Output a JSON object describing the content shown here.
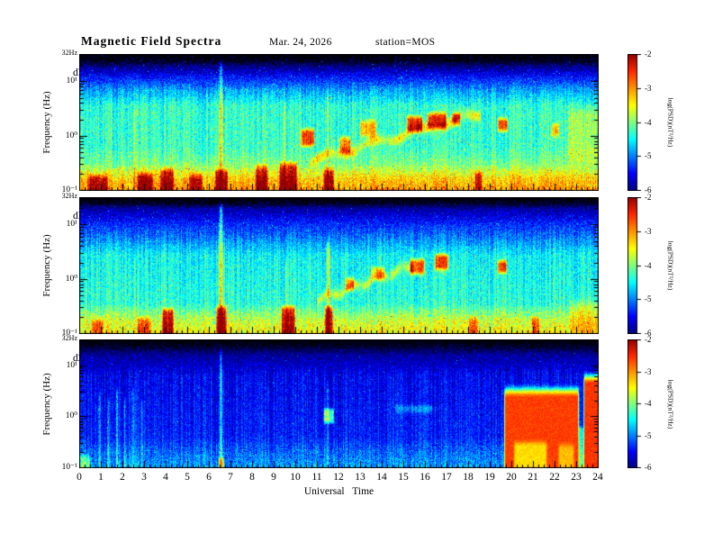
{
  "header": {
    "title": "Magnetic Field Spectra",
    "date": "Mar. 24, 2026",
    "station": "station=MOS"
  },
  "axes": {
    "x_label": "Universal Time",
    "x_ticks": [
      "0",
      "1",
      "2",
      "3",
      "4",
      "5",
      "6",
      "7",
      "8",
      "9",
      "10",
      "11",
      "12",
      "13",
      "14",
      "15",
      "16",
      "17",
      "18",
      "19",
      "20",
      "21",
      "22",
      "23",
      "24"
    ],
    "y_label": "Frequency (Hz)",
    "y_top_label": "32Hz",
    "y_ticks": [
      "10¹",
      "10⁰",
      "10⁻¹"
    ]
  },
  "colorbar": {
    "label": "log(PSD)(nT²/Hz)",
    "ticks": [
      "-2",
      "-3",
      "-4",
      "-5",
      "-6"
    ]
  },
  "chart_data": {
    "type": "heatmap",
    "title": "Magnetic Field Spectra",
    "date": "Mar. 24, 2026",
    "station": "MOS",
    "xlabel": "Universal Time",
    "x_range": [
      0,
      24
    ],
    "ylabel": "Frequency (Hz)",
    "y_scale": "log",
    "y_range_hz": [
      0.1,
      32
    ],
    "colorbar_label": "log(PSD)(nT²/Hz)",
    "c_range": [
      -6,
      -2
    ],
    "panels": [
      {
        "label": "dH/dt",
        "seed": 7,
        "noise": 0.36,
        "speckle_p": 0.015,
        "speckle_amp": 0.85,
        "base": [
          [
            -1.0,
            -3.0
          ],
          [
            -0.78,
            -3.3
          ],
          [
            -0.5,
            -4.05
          ],
          [
            -0.2,
            -4.3
          ],
          [
            0.55,
            -4.35
          ],
          [
            0.85,
            -4.9
          ],
          [
            1.08,
            -5.45
          ],
          [
            1.28,
            -6.0
          ],
          [
            1.38,
            -6.45
          ],
          [
            1.51,
            -6.65
          ]
        ],
        "features": [
          {
            "kind": "vline",
            "t": 6.55,
            "w": 0.07,
            "lf": [
              -1.1,
              1.36
            ],
            "amp": 1.05
          },
          {
            "kind": "vline",
            "t": 2.55,
            "w": 0.05,
            "lf": [
              -1.1,
              0.5
            ],
            "amp": 0.4
          },
          {
            "kind": "vline",
            "t": 9.5,
            "w": 0.05,
            "lf": [
              -1.1,
              0.6
            ],
            "amp": 0.45
          },
          {
            "kind": "vline",
            "t": 11.5,
            "w": 0.05,
            "lf": [
              -1.1,
              0.9
            ],
            "amp": 0.5
          },
          {
            "kind": "trace",
            "p0": [
              11.0,
              -0.42
            ],
            "p1": [
              18.2,
              0.38
            ],
            "w": 0.09,
            "amp": 0.9,
            "wob": 0.06
          },
          {
            "kind": "blob",
            "t": [
              10.25,
              10.85
            ],
            "lf": [
              -0.18,
              0.12
            ],
            "amp": 1.75,
            "soft": 0.1
          },
          {
            "kind": "blob",
            "t": [
              12.05,
              12.55
            ],
            "lf": [
              -0.3,
              -0.02
            ],
            "amp": 1.4,
            "soft": 0.1
          },
          {
            "kind": "blob",
            "t": [
              13.0,
              13.7
            ],
            "lf": [
              0.0,
              0.28
            ],
            "amp": 1.15,
            "soft": 0.12
          },
          {
            "kind": "blob",
            "t": [
              15.15,
              15.85
            ],
            "lf": [
              0.08,
              0.36
            ],
            "amp": 1.8,
            "soft": 0.1
          },
          {
            "kind": "blob",
            "t": [
              16.1,
              16.95
            ],
            "lf": [
              0.15,
              0.42
            ],
            "amp": 1.8,
            "soft": 0.1
          },
          {
            "kind": "blob",
            "t": [
              17.25,
              17.6
            ],
            "lf": [
              0.2,
              0.42
            ],
            "amp": 1.45,
            "soft": 0.1
          },
          {
            "kind": "blob",
            "t": [
              19.35,
              19.8
            ],
            "lf": [
              0.1,
              0.32
            ],
            "amp": 1.8,
            "soft": 0.1
          },
          {
            "kind": "blob",
            "t": [
              21.85,
              22.15
            ],
            "lf": [
              0.0,
              0.22
            ],
            "amp": 1.2,
            "soft": 0.1
          },
          {
            "kind": "blob",
            "t": [
              22.6,
              24.1
            ],
            "lf": [
              -0.5,
              0.5
            ],
            "amp": 0.45,
            "soft": 0.3
          },
          {
            "kind": "blob",
            "t": [
              0.4,
              1.3
            ],
            "lf": [
              -1.15,
              -0.72
            ],
            "amp": 1.15,
            "soft": 0.12
          },
          {
            "kind": "blob",
            "t": [
              2.7,
              3.4
            ],
            "lf": [
              -1.15,
              -0.68
            ],
            "amp": 1.25,
            "soft": 0.12
          },
          {
            "kind": "blob",
            "t": [
              3.75,
              4.35
            ],
            "lf": [
              -1.15,
              -0.6
            ],
            "amp": 1.3,
            "soft": 0.12
          },
          {
            "kind": "blob",
            "t": [
              5.1,
              5.7
            ],
            "lf": [
              -1.15,
              -0.7
            ],
            "amp": 1.15,
            "soft": 0.12
          },
          {
            "kind": "blob",
            "t": [
              6.3,
              6.85
            ],
            "lf": [
              -1.15,
              -0.62
            ],
            "amp": 1.3,
            "soft": 0.1
          },
          {
            "kind": "blob",
            "t": [
              8.15,
              8.7
            ],
            "lf": [
              -1.15,
              -0.55
            ],
            "amp": 1.35,
            "soft": 0.12
          },
          {
            "kind": "blob",
            "t": [
              9.25,
              10.05
            ],
            "lf": [
              -1.15,
              -0.5
            ],
            "amp": 1.4,
            "soft": 0.12
          },
          {
            "kind": "blob",
            "t": [
              11.3,
              11.75
            ],
            "lf": [
              -1.15,
              -0.6
            ],
            "amp": 1.25,
            "soft": 0.1
          },
          {
            "kind": "blob",
            "t": [
              18.3,
              18.6
            ],
            "lf": [
              -1.15,
              -0.65
            ],
            "amp": 1.0,
            "soft": 0.1
          }
        ]
      },
      {
        "label": "dD/dt",
        "seed": 23,
        "noise": 0.34,
        "speckle_p": 0.012,
        "speckle_amp": 0.8,
        "base": [
          [
            -1.0,
            -3.45
          ],
          [
            -0.72,
            -3.75
          ],
          [
            -0.45,
            -4.35
          ],
          [
            0.45,
            -4.5
          ],
          [
            0.75,
            -5.0
          ],
          [
            1.0,
            -5.35
          ],
          [
            1.3,
            -5.9
          ],
          [
            1.4,
            -6.45
          ],
          [
            1.51,
            -6.65
          ]
        ],
        "features": [
          {
            "kind": "vline",
            "t": 6.55,
            "w": 0.07,
            "lf": [
              -1.1,
              1.36
            ],
            "amp": 1.3
          },
          {
            "kind": "vline",
            "t": 11.5,
            "w": 0.06,
            "lf": [
              -1.1,
              0.7
            ],
            "amp": 1.0
          },
          {
            "kind": "vline",
            "t": 2.55,
            "w": 0.05,
            "lf": [
              -1.1,
              0.4
            ],
            "amp": 0.45
          },
          {
            "kind": "vline",
            "t": 9.55,
            "w": 0.05,
            "lf": [
              -1.1,
              0.35
            ],
            "amp": 0.5
          },
          {
            "kind": "trace",
            "p0": [
              11.2,
              -0.35
            ],
            "p1": [
              15.2,
              0.22
            ],
            "w": 0.09,
            "amp": 0.8,
            "wob": 0.05
          },
          {
            "kind": "blob",
            "t": [
              12.3,
              12.7
            ],
            "lf": [
              -0.2,
              0.02
            ],
            "amp": 1.15,
            "soft": 0.1
          },
          {
            "kind": "blob",
            "t": [
              13.5,
              14.1
            ],
            "lf": [
              0.0,
              0.22
            ],
            "amp": 1.0,
            "soft": 0.1
          },
          {
            "kind": "blob",
            "t": [
              15.3,
              15.95
            ],
            "lf": [
              0.1,
              0.36
            ],
            "amp": 1.85,
            "soft": 0.1
          },
          {
            "kind": "blob",
            "t": [
              16.45,
              17.05
            ],
            "lf": [
              0.18,
              0.45
            ],
            "amp": 1.85,
            "soft": 0.1
          },
          {
            "kind": "blob",
            "t": [
              19.35,
              19.75
            ],
            "lf": [
              0.12,
              0.34
            ],
            "amp": 1.8,
            "soft": 0.1
          },
          {
            "kind": "blob",
            "t": [
              3.85,
              4.35
            ],
            "lf": [
              -1.15,
              -0.55
            ],
            "amp": 1.55,
            "soft": 0.1
          },
          {
            "kind": "blob",
            "t": [
              6.35,
              6.8
            ],
            "lf": [
              -1.15,
              -0.5
            ],
            "amp": 1.55,
            "soft": 0.1
          },
          {
            "kind": "blob",
            "t": [
              9.35,
              9.95
            ],
            "lf": [
              -1.15,
              -0.5
            ],
            "amp": 1.6,
            "soft": 0.1
          },
          {
            "kind": "blob",
            "t": [
              11.35,
              11.7
            ],
            "lf": [
              -1.15,
              -0.5
            ],
            "amp": 1.55,
            "soft": 0.1
          },
          {
            "kind": "blob",
            "t": [
              0.6,
              1.1
            ],
            "lf": [
              -1.15,
              -0.75
            ],
            "amp": 0.95,
            "soft": 0.12
          },
          {
            "kind": "blob",
            "t": [
              2.7,
              3.3
            ],
            "lf": [
              -1.15,
              -0.72
            ],
            "amp": 1.0,
            "soft": 0.12
          },
          {
            "kind": "blob",
            "t": [
              18.0,
              18.4
            ],
            "lf": [
              -1.15,
              -0.7
            ],
            "amp": 0.95,
            "soft": 0.1
          },
          {
            "kind": "blob",
            "t": [
              20.9,
              21.25
            ],
            "lf": [
              -1.15,
              -0.7
            ],
            "amp": 0.95,
            "soft": 0.1
          },
          {
            "kind": "blob",
            "t": [
              22.7,
              24.1
            ],
            "lf": [
              -1.0,
              -0.4
            ],
            "amp": 0.5,
            "soft": 0.2
          }
        ]
      },
      {
        "label": "dZ/dt",
        "seed": 41,
        "noise": 0.3,
        "speckle_p": 0.005,
        "speckle_amp": 0.7,
        "base": [
          [
            -1.0,
            -4.85
          ],
          [
            -0.7,
            -5.1
          ],
          [
            -0.4,
            -5.4
          ],
          [
            0.8,
            -5.55
          ],
          [
            1.2,
            -5.9
          ],
          [
            1.4,
            -6.45
          ],
          [
            1.51,
            -6.65
          ]
        ],
        "features": [
          {
            "kind": "vline",
            "t": 0.95,
            "w": 0.05,
            "lf": [
              -1.1,
              0.45
            ],
            "amp": 0.7
          },
          {
            "kind": "vline",
            "t": 1.35,
            "w": 0.05,
            "lf": [
              -1.1,
              0.3
            ],
            "amp": 0.6
          },
          {
            "kind": "vline",
            "t": 1.75,
            "w": 0.05,
            "lf": [
              -1.1,
              0.5
            ],
            "amp": 0.75
          },
          {
            "kind": "vline",
            "t": 2.1,
            "w": 0.05,
            "lf": [
              -1.1,
              0.35
            ],
            "amp": 0.6
          },
          {
            "kind": "vline",
            "t": 2.5,
            "w": 0.05,
            "lf": [
              -1.1,
              0.55
            ],
            "amp": 0.7
          },
          {
            "kind": "vline",
            "t": 2.9,
            "w": 0.05,
            "lf": [
              -1.1,
              0.3
            ],
            "amp": 0.55
          },
          {
            "kind": "vline",
            "t": 6.55,
            "w": 0.06,
            "lf": [
              -1.1,
              1.3
            ],
            "amp": 0.9
          },
          {
            "kind": "vline",
            "t": 11.5,
            "w": 0.05,
            "lf": [
              -1.1,
              0.6
            ],
            "amp": 0.6
          },
          {
            "kind": "blob",
            "t": [
              6.45,
              6.68
            ],
            "lf": [
              -1.15,
              -0.8
            ],
            "amp": 1.3,
            "soft": 0.08
          },
          {
            "kind": "blob",
            "t": [
              11.3,
              11.75
            ],
            "lf": [
              -0.12,
              0.15
            ],
            "amp": 1.35,
            "soft": 0.08
          },
          {
            "kind": "blob",
            "t": [
              14.6,
              16.3
            ],
            "lf": [
              0.08,
              0.22
            ],
            "amp": 0.5,
            "soft": 0.08
          },
          {
            "kind": "blob",
            "t": [
              0.05,
              0.5
            ],
            "lf": [
              -1.15,
              -0.75
            ],
            "amp": 0.8,
            "soft": 0.1
          },
          {
            "kind": "block",
            "t": [
              19.65,
              23.08
            ],
            "lf": [
              -1.2,
              0.52
            ],
            "amp_to": -2.6,
            "soft_t": 0.12,
            "soft_f": 0.3
          },
          {
            "kind": "blob",
            "t": [
              20.1,
              21.6
            ],
            "lf": [
              -1.2,
              -0.5
            ],
            "amp": -0.75,
            "soft": 0.15
          },
          {
            "kind": "blob",
            "t": [
              22.15,
              22.85
            ],
            "lf": [
              -1.2,
              -0.55
            ],
            "amp": -0.6,
            "soft": 0.15
          },
          {
            "kind": "blob",
            "t": [
              23.08,
              23.32
            ],
            "lf": [
              -1.15,
              -0.2
            ],
            "amp": 0.9,
            "soft": 0.08
          },
          {
            "kind": "block",
            "t": [
              23.32,
              24.15
            ],
            "lf": [
              -1.2,
              0.78
            ],
            "amp_to": -2.55,
            "soft_t": 0.1,
            "soft_f": 0.28
          }
        ]
      }
    ]
  }
}
